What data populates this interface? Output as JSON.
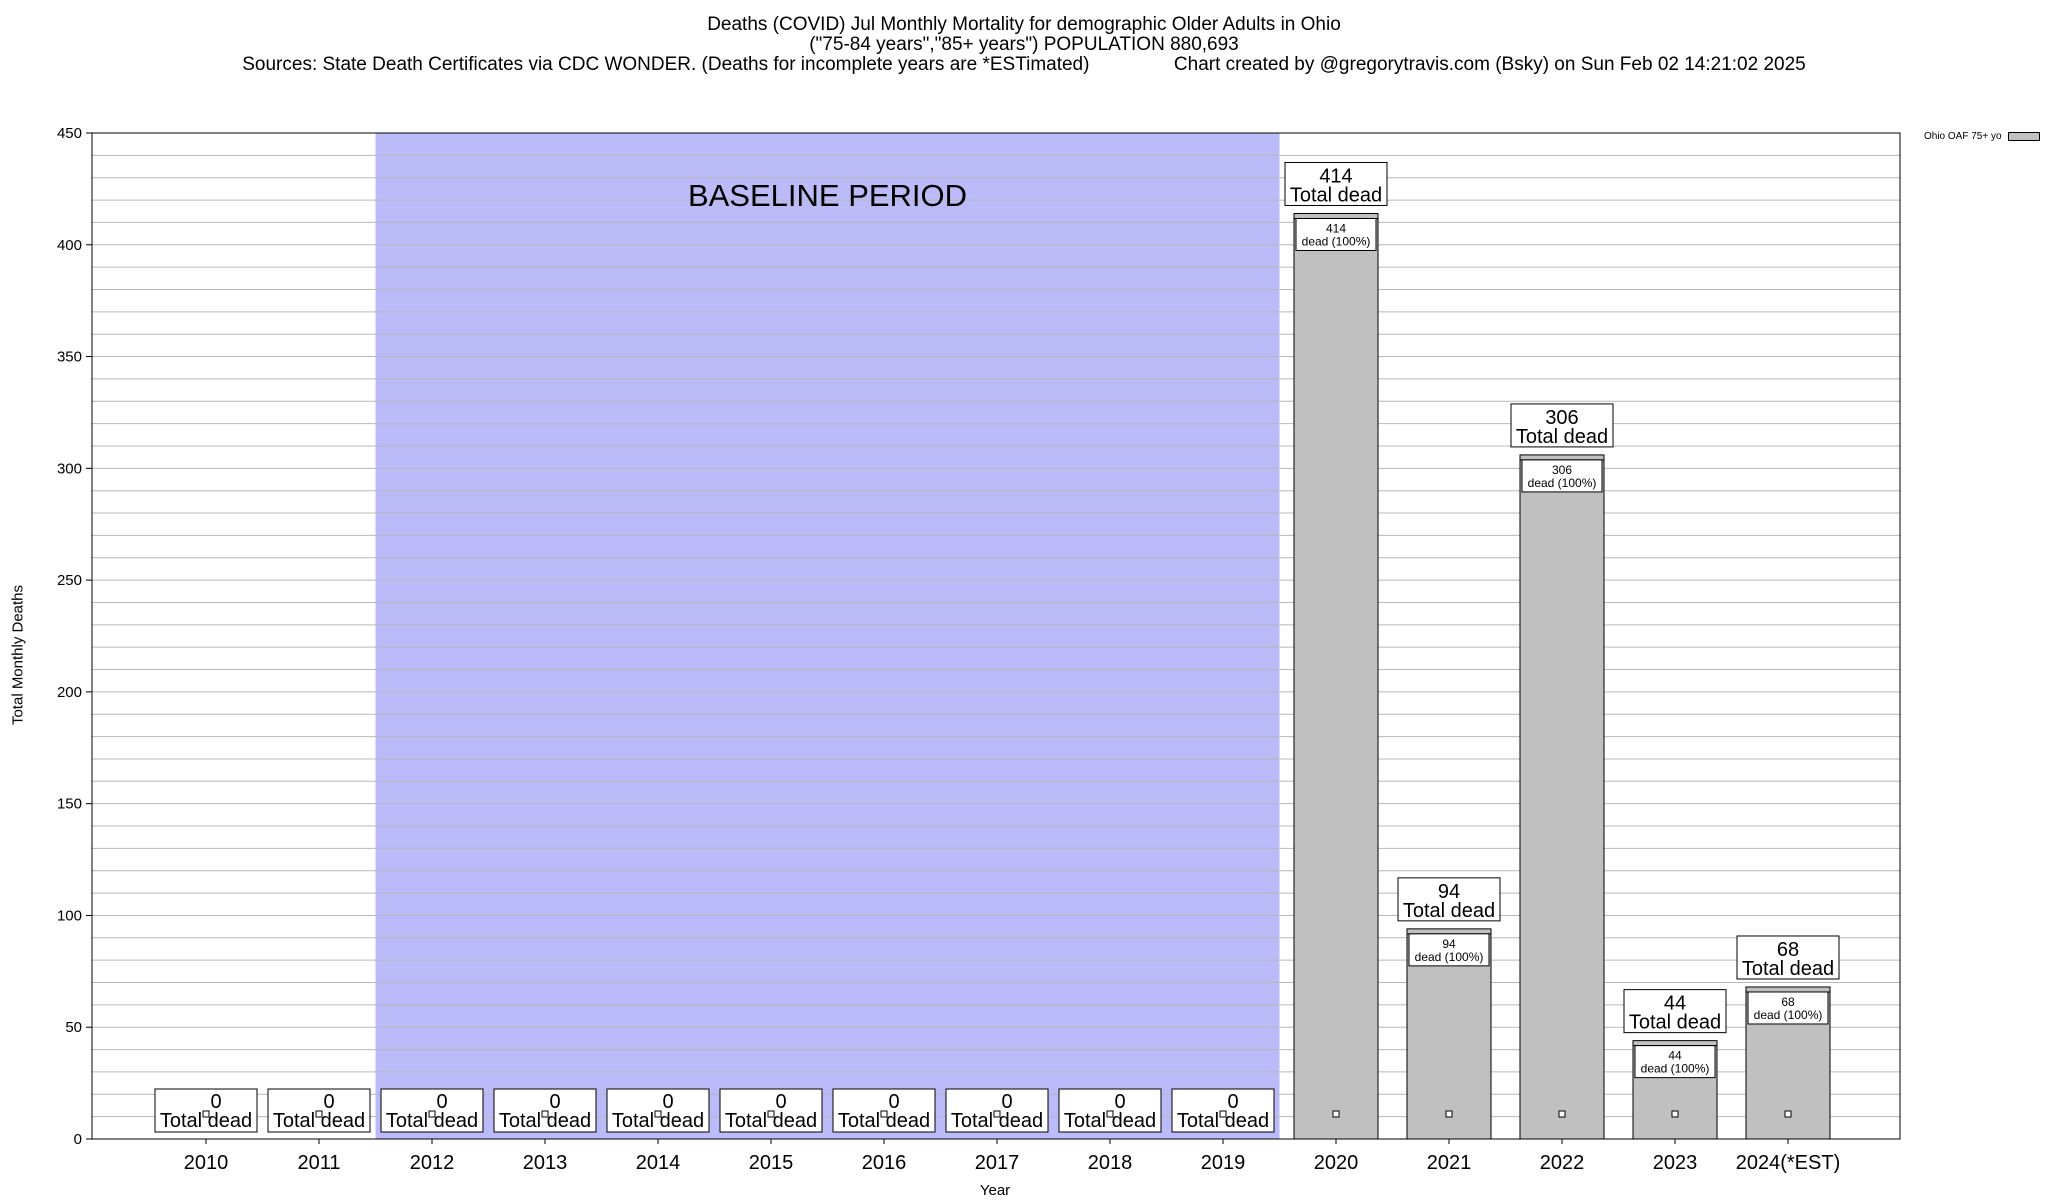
{
  "chart_data": {
    "type": "bar",
    "title_lines": [
      "Deaths (COVID) Jul Monthly Mortality for demographic Older Adults in Ohio",
      "(\"75-84 years\",\"85+ years\") POPULATION 880,693",
      "Sources: State Death Certificates via CDC WONDER. (Deaths for incomplete years are *ESTimated)                Chart created by @gregorytravis.com (Bsky) on Sun Feb 02 14:21:02 2025"
    ],
    "ylabel": "Total Monthly Deaths",
    "xlabel": "Year",
    "ylim": [
      0,
      450
    ],
    "yticks": [
      0,
      50,
      100,
      150,
      200,
      250,
      300,
      350,
      400,
      450
    ],
    "minor_grid_step": 10,
    "categories": [
      "2010",
      "2011",
      "2012",
      "2013",
      "2014",
      "2015",
      "2016",
      "2017",
      "2018",
      "2019",
      "2020",
      "2021",
      "2022",
      "2023",
      "2024(*EST)"
    ],
    "series": [
      {
        "name": "Ohio OAF 75+ yo",
        "color": "#c0c0c0",
        "values": [
          0,
          0,
          0,
          0,
          0,
          0,
          0,
          0,
          0,
          0,
          414,
          94,
          306,
          44,
          68
        ]
      }
    ],
    "total_label_suffix": "Total dead",
    "inner_label_suffix": "dead (100%)",
    "baseline_band": {
      "label": "BASELINE PERIOD",
      "from": "2012",
      "to": "2019",
      "color": "#bbbbf9"
    },
    "legend_position": "top-right"
  }
}
